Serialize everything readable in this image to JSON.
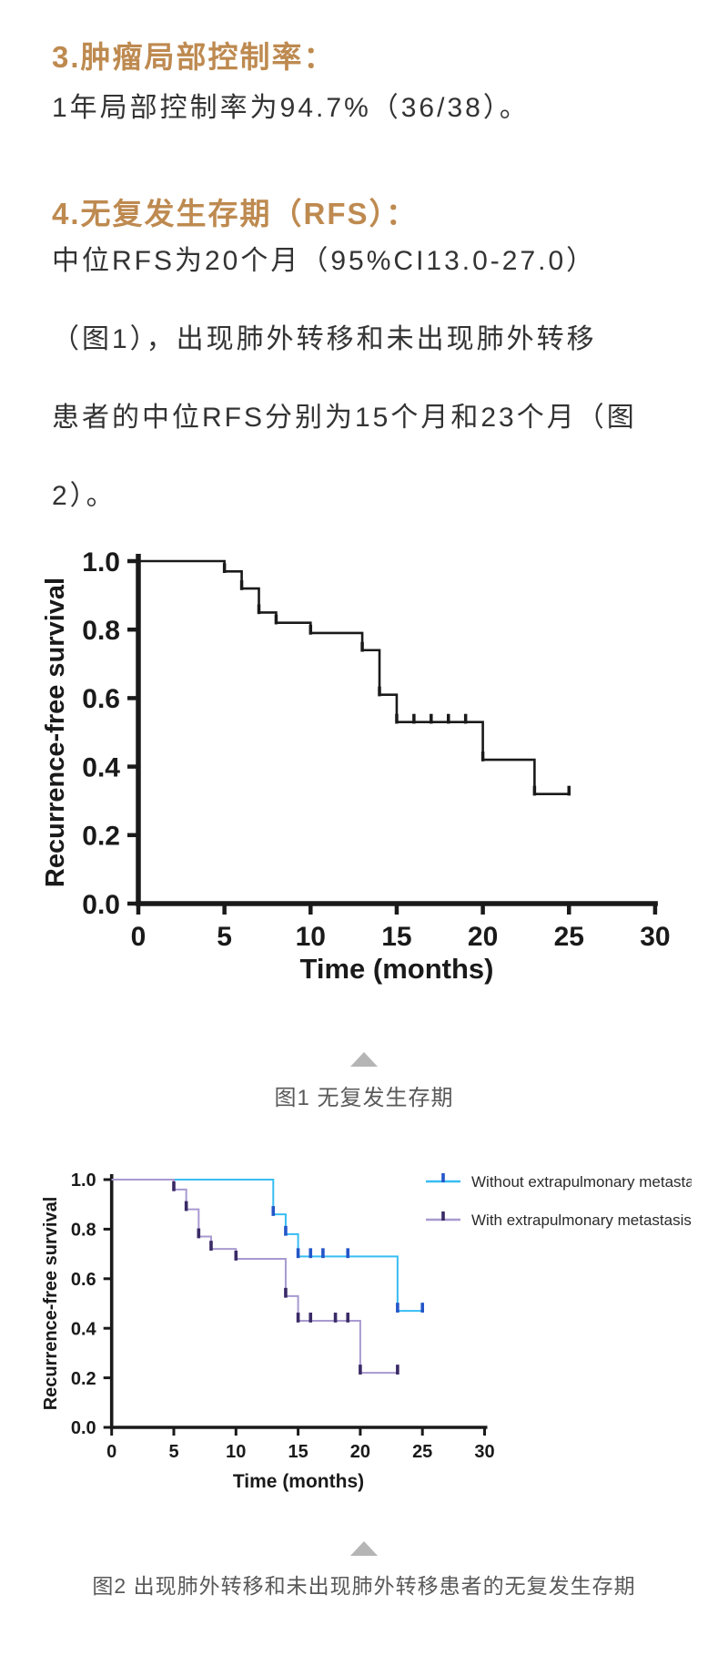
{
  "sections": [
    {
      "heading": "3.肿瘤局部控制率：",
      "text": "1年局部控制率为94.7%（36/38）。"
    },
    {
      "heading": "4.无复发生存期（RFS）：",
      "text": "中位RFS为20个月（95%CI13.0-27.0）\n（图1），出现肺外转移和未出现肺外转移\n患者的中位RFS分别为15个月和23个月（图\n2）。"
    }
  ],
  "figures": [
    {
      "caption": "图1 无复发生存期"
    },
    {
      "caption": "图2 出现肺外转移和未出现肺外转移患者的无复发生存期"
    }
  ],
  "colors": {
    "heading": "#be8a50",
    "body_text": "#333333",
    "caption": "#595959",
    "triangle": "#b5b5b5",
    "axis": "#1a1a1a",
    "km_overall": "#1a1a1a",
    "km_without_metastasis": "#38bdf3",
    "km_without_censor": "#2456c8",
    "km_with_metastasis": "#a89ad0",
    "km_with_censor": "#3a2a66"
  },
  "chart_data": [
    {
      "type": "line",
      "subtype": "kaplan-meier-step",
      "title": "",
      "xlabel": "Time (months)",
      "ylabel": "Recurrence-free survival",
      "xlim": [
        0,
        30
      ],
      "xticks": [
        0,
        5,
        10,
        15,
        20,
        25,
        30
      ],
      "ylim": [
        0.0,
        1.0
      ],
      "yticks": [
        0.0,
        0.2,
        0.4,
        0.6,
        0.8,
        1.0
      ],
      "grid": false,
      "axis_color": "#1a1a1a",
      "series": [
        {
          "color": "#1a1a1a",
          "censor_color": "#1a1a1a",
          "start": [
            0,
            1.0
          ],
          "events": [
            [
              5,
              0.97
            ],
            [
              6,
              0.92
            ],
            [
              7,
              0.85
            ],
            [
              8,
              0.82
            ],
            [
              10,
              0.79
            ],
            [
              13,
              0.74
            ],
            [
              14,
              0.61
            ],
            [
              15,
              0.53
            ],
            [
              20,
              0.42
            ],
            [
              23,
              0.32
            ]
          ],
          "end_time": 25,
          "censors": [
            [
              16,
              0.53
            ],
            [
              17,
              0.53
            ],
            [
              18,
              0.53
            ],
            [
              19,
              0.53
            ],
            [
              25,
              0.32
            ]
          ]
        }
      ]
    },
    {
      "type": "line",
      "subtype": "kaplan-meier-step",
      "title": "",
      "xlabel": "Time (months)",
      "ylabel": "Recurrence-free survival",
      "xlim": [
        0,
        30
      ],
      "xticks": [
        0,
        5,
        10,
        15,
        20,
        25,
        30
      ],
      "ylim": [
        0.0,
        1.0
      ],
      "yticks": [
        0.0,
        0.2,
        0.4,
        0.6,
        0.8,
        1.0
      ],
      "grid": false,
      "axis_color": "#1a1a1a",
      "legend_position": "upper right, outside plot",
      "series": [
        {
          "name": "Without extrapulmonary metastasis",
          "color": "#38bdf3",
          "censor_color": "#2456c8",
          "start": [
            0,
            1.0
          ],
          "events": [
            [
              13,
              0.86
            ],
            [
              14,
              0.78
            ],
            [
              15,
              0.69
            ],
            [
              23,
              0.47
            ]
          ],
          "end_time": 25,
          "censors": [
            [
              16,
              0.69
            ],
            [
              17,
              0.69
            ],
            [
              19,
              0.69
            ],
            [
              25,
              0.47
            ]
          ]
        },
        {
          "name": "With extrapulmonary metastasis",
          "color": "#a89ad0",
          "censor_color": "#3a2a66",
          "start": [
            0,
            1.0
          ],
          "events": [
            [
              5,
              0.96
            ],
            [
              6,
              0.88
            ],
            [
              7,
              0.77
            ],
            [
              8,
              0.72
            ],
            [
              10,
              0.68
            ],
            [
              14,
              0.53
            ],
            [
              15,
              0.43
            ],
            [
              20,
              0.22
            ]
          ],
          "end_time": 23,
          "censors": [
            [
              16,
              0.43
            ],
            [
              18,
              0.43
            ],
            [
              19,
              0.43
            ],
            [
              23,
              0.22
            ]
          ]
        }
      ]
    }
  ]
}
